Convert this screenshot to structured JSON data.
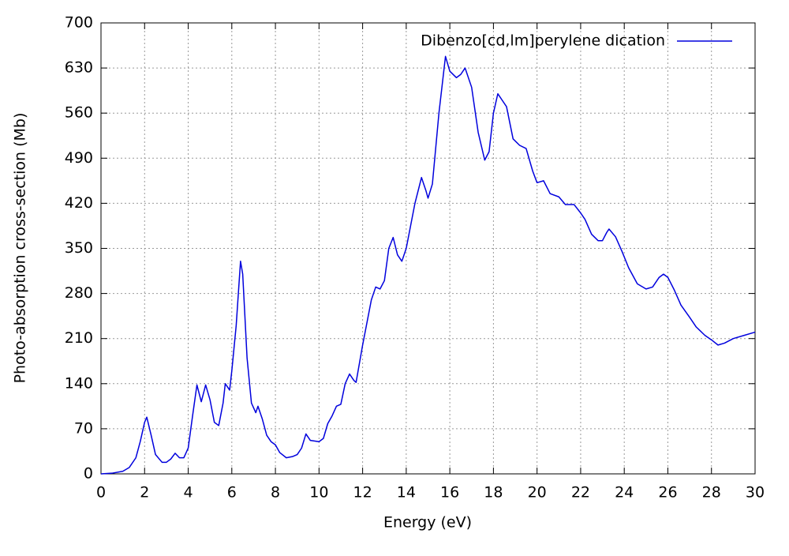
{
  "chart_data": {
    "type": "line",
    "xlabel": "Energy (eV)",
    "ylabel": "Photo-absorption cross-section (Mb)",
    "xlim": [
      0,
      30
    ],
    "xticks": [
      0,
      2,
      4,
      6,
      8,
      10,
      12,
      14,
      16,
      18,
      20,
      22,
      24,
      26,
      28,
      30
    ],
    "ylim": [
      0,
      700
    ],
    "yticks": [
      0,
      70,
      140,
      210,
      280,
      350,
      420,
      490,
      560,
      630,
      700
    ],
    "grid": true,
    "legend": "top-right",
    "x": [
      0,
      0.5,
      1.0,
      1.3,
      1.6,
      1.8,
      2.0,
      2.1,
      2.3,
      2.5,
      2.8,
      3.0,
      3.2,
      3.4,
      3.6,
      3.8,
      4.0,
      4.2,
      4.4,
      4.6,
      4.8,
      5.0,
      5.2,
      5.4,
      5.6,
      5.7,
      5.9,
      6.0,
      6.2,
      6.4,
      6.5,
      6.7,
      6.9,
      7.1,
      7.2,
      7.4,
      7.6,
      7.8,
      8.0,
      8.2,
      8.5,
      8.8,
      9.0,
      9.2,
      9.4,
      9.6,
      10.0,
      10.2,
      10.4,
      10.6,
      10.8,
      11.0,
      11.2,
      11.4,
      11.6,
      11.7,
      12.0,
      12.4,
      12.6,
      12.8,
      13.0,
      13.2,
      13.4,
      13.6,
      13.8,
      14.0,
      14.4,
      14.7,
      14.9,
      15.0,
      15.2,
      15.5,
      15.8,
      16.0,
      16.3,
      16.5,
      16.7,
      17.0,
      17.3,
      17.6,
      17.8,
      18.0,
      18.2,
      18.4,
      18.6,
      18.9,
      19.2,
      19.5,
      19.8,
      20.0,
      20.3,
      20.6,
      21.0,
      21.3,
      21.7,
      22.0,
      22.2,
      22.5,
      22.8,
      23.0,
      23.2,
      23.3,
      23.6,
      23.9,
      24.2,
      24.6,
      25.0,
      25.3,
      25.6,
      25.8,
      26.0,
      26.3,
      26.6,
      27.0,
      27.3,
      27.7,
      28.0,
      28.3,
      28.6,
      29.0,
      29.5,
      30.0
    ],
    "series": [
      {
        "name": "Dibenzo[cd,lm]perylene dication",
        "color": "#0000dd",
        "values": [
          0,
          1,
          4,
          10,
          25,
          50,
          80,
          88,
          60,
          30,
          18,
          18,
          23,
          32,
          25,
          25,
          40,
          90,
          138,
          112,
          138,
          115,
          80,
          75,
          110,
          140,
          130,
          160,
          230,
          330,
          310,
          180,
          110,
          95,
          105,
          85,
          60,
          50,
          45,
          33,
          25,
          27,
          30,
          40,
          62,
          52,
          50,
          55,
          78,
          90,
          105,
          108,
          140,
          155,
          145,
          142,
          200,
          270,
          290,
          287,
          300,
          350,
          367,
          340,
          330,
          350,
          420,
          460,
          440,
          428,
          450,
          560,
          648,
          625,
          615,
          620,
          630,
          600,
          530,
          487,
          500,
          560,
          590,
          580,
          570,
          520,
          510,
          505,
          470,
          452,
          455,
          435,
          430,
          418,
          418,
          405,
          395,
          372,
          362,
          362,
          375,
          380,
          368,
          345,
          320,
          295,
          287,
          290,
          305,
          310,
          305,
          285,
          262,
          243,
          228,
          215,
          208,
          200,
          203,
          210,
          215,
          220
        ]
      }
    ]
  }
}
